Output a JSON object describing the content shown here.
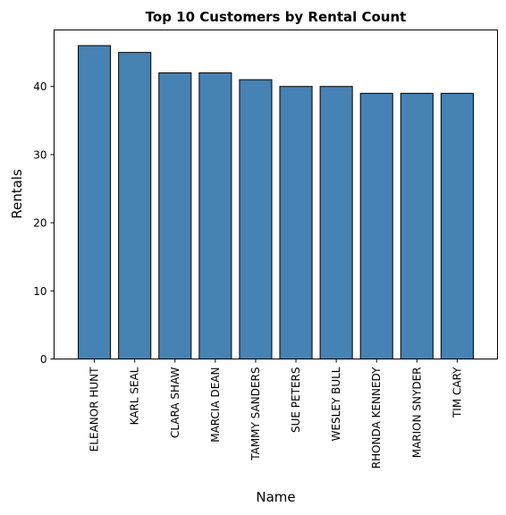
{
  "chart_data": {
    "type": "bar",
    "title": "Top 10 Customers by Rental Count",
    "xlabel": "Name",
    "ylabel": "Rentals",
    "categories": [
      "ELEANOR HUNT",
      "KARL SEAL",
      "CLARA SHAW",
      "MARCIA DEAN",
      "TAMMY SANDERS",
      "SUE PETERS",
      "WESLEY BULL",
      "RHONDA KENNEDY",
      "MARION SNYDER",
      "TIM CARY"
    ],
    "values": [
      46,
      45,
      42,
      42,
      41,
      40,
      40,
      39,
      39,
      39
    ],
    "ylim": [
      0,
      48.3
    ],
    "yticks": [
      0,
      10,
      20,
      30,
      40
    ],
    "bar_color": "#4682b4",
    "edge_color": "#000000",
    "grid": false
  }
}
